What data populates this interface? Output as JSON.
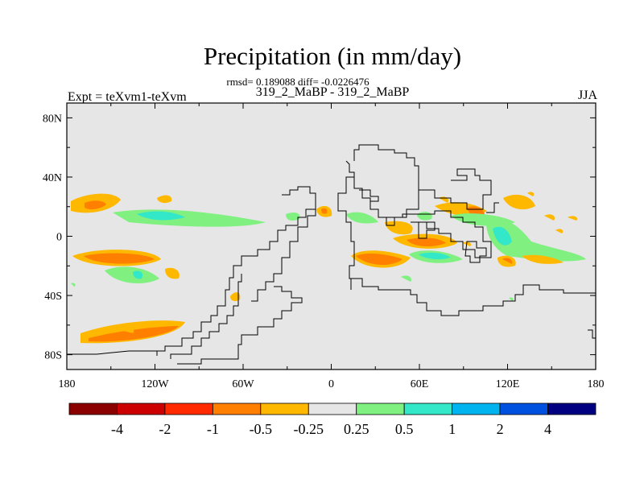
{
  "title": "Precipitation (in mm/day)",
  "stats": "rmsd= 0.189088 diff= -0.0226476",
  "subtitle": "319_2_MaBP - 319_2_MaBP",
  "left_label": "Expt = teXvm1-teXvm",
  "right_label": "JJA",
  "chart_data": {
    "type": "contour-map",
    "variable": "Precipitation difference",
    "units": "mm/day",
    "season": "JJA",
    "x_axis": {
      "range": [
        -180,
        180
      ],
      "ticks": [
        "180",
        "120W",
        "60W",
        "0",
        "60E",
        "120E",
        "180"
      ]
    },
    "y_axis": {
      "range": [
        -90,
        90
      ],
      "ticks": [
        "80N",
        "40N",
        "0",
        "40S",
        "80S"
      ]
    },
    "background_color": "#e6e6e6",
    "colorbar": {
      "colors": [
        "#8b0000",
        "#cc0000",
        "#ff2a00",
        "#ff7f00",
        "#ffb800",
        "#e6e6e6",
        "#80f080",
        "#33e8c8",
        "#00b4f0",
        "#0050e0",
        "#000080"
      ],
      "labels": [
        "-4",
        "-2",
        "-1",
        "-0.5",
        "-0.25",
        "0.25",
        "0.5",
        "1",
        "2",
        "4"
      ]
    }
  }
}
